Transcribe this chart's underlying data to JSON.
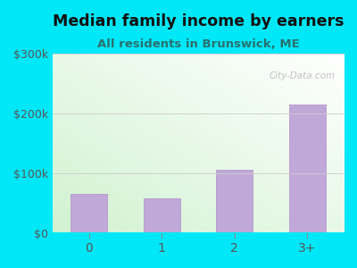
{
  "title": "Median family income by earners",
  "subtitle": "All residents in Brunswick, ME",
  "categories": [
    "0",
    "1",
    "2",
    "3+"
  ],
  "values": [
    65000,
    58000,
    105000,
    215000
  ],
  "ylim": [
    0,
    300000
  ],
  "yticks": [
    0,
    100000,
    200000,
    300000
  ],
  "ytick_labels": [
    "$0",
    "$100k",
    "$200k",
    "$300k"
  ],
  "bar_color": "#c0a8d8",
  "bar_edge_color": "#b090c8",
  "bg_outer": "#00e8f8",
  "title_color": "#111111",
  "subtitle_color": "#2a7070",
  "tick_color": "#555555",
  "grid_color": "#cccccc",
  "title_fontsize": 12.5,
  "subtitle_fontsize": 9.5,
  "tick_fontsize": 9,
  "watermark": "City-Data.com"
}
